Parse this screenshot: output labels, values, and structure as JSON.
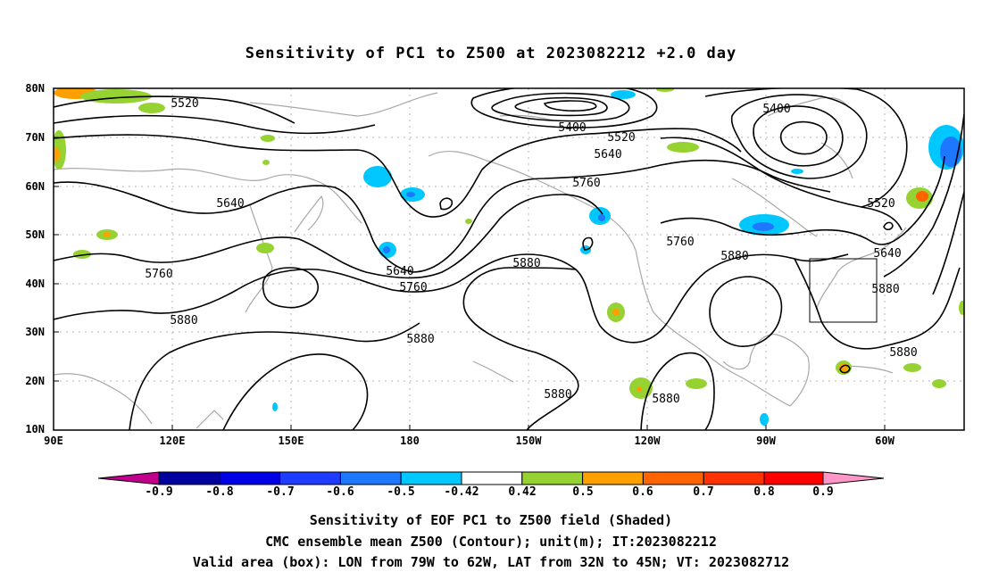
{
  "title": "Sensitivity of PC1 to Z500 at 2023082212 +2.0 day",
  "map": {
    "lat_labels": [
      "80N",
      "70N",
      "60N",
      "50N",
      "40N",
      "30N",
      "20N",
      "10N"
    ],
    "lon_labels": [
      "90E",
      "120E",
      "150E",
      "180",
      "150W",
      "120W",
      "90W",
      "60W"
    ],
    "contour_labels": [
      {
        "text": "5520"
      },
      {
        "text": "5400"
      },
      {
        "text": "5520"
      },
      {
        "text": "5400"
      },
      {
        "text": "5640"
      },
      {
        "text": "5640"
      },
      {
        "text": "5760"
      },
      {
        "text": "5520"
      },
      {
        "text": "5760"
      },
      {
        "text": "5640"
      },
      {
        "text": "5760"
      },
      {
        "text": "5880"
      },
      {
        "text": "5880"
      },
      {
        "text": "5640"
      },
      {
        "text": "5880"
      },
      {
        "text": "5760"
      },
      {
        "text": "5880"
      },
      {
        "text": "5880"
      },
      {
        "text": "5880"
      },
      {
        "text": "5880"
      }
    ],
    "valid_box": {
      "lon": [
        -79,
        -62
      ],
      "lat": [
        32,
        45
      ]
    }
  },
  "colorbar": {
    "labels": [
      "-0.9",
      "-0.8",
      "-0.7",
      "-0.6",
      "-0.5",
      "-0.42",
      "0.42",
      "0.5",
      "0.6",
      "0.7",
      "0.8",
      "0.9"
    ],
    "colors": [
      "#c0008c",
      "#0000a0",
      "#0000e6",
      "#1e3cff",
      "#1e78ff",
      "#00c8ff",
      "#ffffff",
      "#96d232",
      "#ffa000",
      "#ff6400",
      "#ff3200",
      "#ff0000",
      "#ff96c8"
    ]
  },
  "footer": {
    "line1": "Sensitivity of EOF PC1 to Z500 field (Shaded)",
    "line2": "CMC ensemble mean Z500 (Contour); unit(m); IT:2023082212",
    "line3": "Valid area (box): LON from 79W to 62W, LAT from 32N to 45N; VT: 2023082712"
  }
}
